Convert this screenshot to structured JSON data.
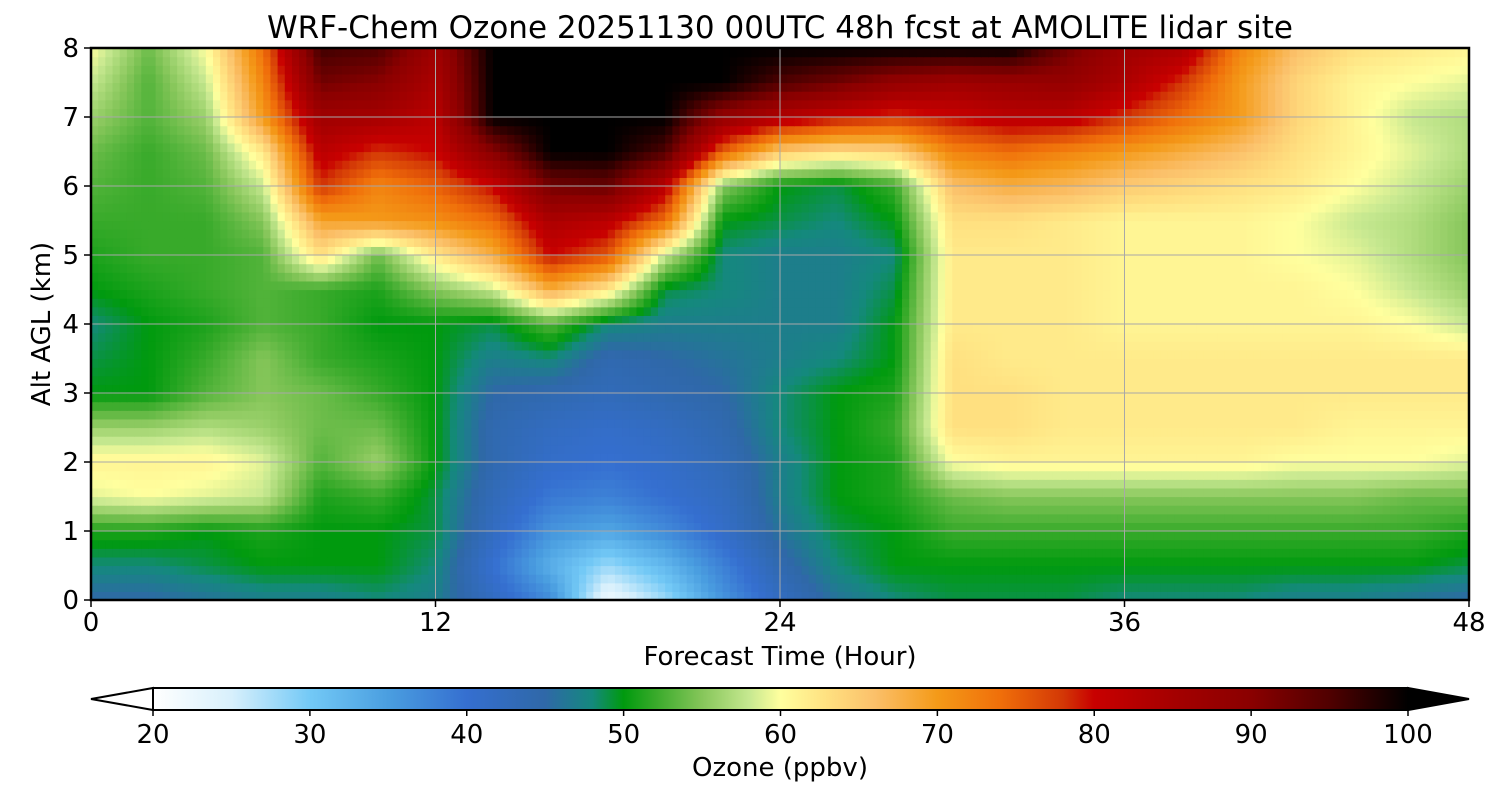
{
  "chart_data": {
    "type": "heatmap",
    "title": "WRF-Chem Ozone  20251130 00UTC 48h fcst at AMOLITE lidar site",
    "xlabel": "Forecast Time (Hour)",
    "ylabel": "Alt AGL (km)",
    "xlim": [
      0,
      48
    ],
    "ylim": [
      0,
      8
    ],
    "x_ticks": [
      "0",
      "12",
      "24",
      "36",
      "48"
    ],
    "y_ticks": [
      "0",
      "1",
      "2",
      "3",
      "4",
      "5",
      "6",
      "7",
      "8"
    ],
    "grid": true,
    "x_hours": [
      0,
      2,
      4,
      6,
      8,
      10,
      12,
      14,
      16,
      18,
      20,
      22,
      24,
      26,
      28,
      30,
      32,
      34,
      36,
      38,
      40,
      42,
      44,
      46,
      48
    ],
    "y_km": [
      0,
      0.5,
      1,
      1.5,
      2,
      2.5,
      3,
      3.5,
      4,
      4.5,
      5,
      5.5,
      6,
      6.5,
      7,
      7.5,
      8
    ],
    "ozone_ppbv": [
      [
        45,
        45,
        46,
        47,
        47,
        48,
        47,
        42,
        37,
        22,
        28,
        36,
        42,
        46,
        48,
        49,
        49,
        49,
        48,
        48,
        48,
        47,
        47,
        46,
        45
      ],
      [
        48,
        48,
        49,
        50,
        50,
        50,
        48,
        40,
        33,
        28,
        32,
        38,
        44,
        48,
        50,
        50,
        50,
        50,
        50,
        50,
        50,
        50,
        50,
        50,
        49
      ],
      [
        51,
        51,
        50,
        51,
        50,
        50,
        49,
        42,
        36,
        34,
        37,
        41,
        46,
        49,
        50,
        52,
        52,
        52,
        52,
        52,
        52,
        52,
        52,
        52,
        51
      ],
      [
        59,
        60,
        59,
        58,
        51,
        52,
        49,
        43,
        39,
        38,
        40,
        42,
        47,
        50,
        51,
        54,
        55,
        55,
        55,
        55,
        55,
        55,
        55,
        54,
        54
      ],
      [
        61,
        61,
        61,
        59,
        53,
        56,
        50,
        44,
        41,
        40,
        41,
        43,
        47,
        50,
        51,
        60,
        61,
        61,
        61,
        61,
        61,
        60,
        60,
        60,
        59
      ],
      [
        56,
        56,
        57,
        56,
        54,
        54,
        50,
        44,
        42,
        41,
        42,
        44,
        48,
        50,
        52,
        63,
        63,
        62,
        62,
        62,
        62,
        62,
        61,
        61,
        61
      ],
      [
        50,
        50,
        53,
        55,
        54,
        52,
        50,
        45,
        44,
        43,
        44,
        45,
        48,
        50,
        51,
        63,
        63,
        62,
        62,
        62,
        62,
        62,
        62,
        62,
        62
      ],
      [
        49,
        50,
        52,
        55,
        52,
        51,
        50,
        47,
        48,
        44,
        45,
        46,
        47,
        48,
        50,
        63,
        62,
        62,
        62,
        62,
        62,
        62,
        62,
        62,
        62
      ],
      [
        48,
        50,
        51,
        53,
        52,
        50,
        50,
        49,
        53,
        48,
        47,
        47,
        47,
        47,
        50,
        62,
        62,
        62,
        61,
        61,
        61,
        61,
        61,
        60,
        58
      ],
      [
        50,
        51,
        52,
        53,
        52,
        51,
        55,
        58,
        68,
        62,
        49,
        48,
        47,
        47,
        49,
        62,
        62,
        62,
        61,
        61,
        61,
        61,
        60,
        58,
        56
      ],
      [
        51,
        52,
        52,
        53,
        63,
        54,
        62,
        68,
        80,
        76,
        58,
        48,
        47,
        47,
        48,
        62,
        62,
        62,
        61,
        61,
        61,
        60,
        59,
        57,
        55
      ],
      [
        52,
        52,
        52,
        55,
        69,
        70,
        71,
        74,
        84,
        82,
        74,
        50,
        49,
        48,
        50,
        63,
        63,
        62,
        61,
        61,
        61,
        60,
        58,
        57,
        55
      ],
      [
        53,
        52,
        53,
        58,
        78,
        72,
        75,
        80,
        92,
        93,
        82,
        55,
        50,
        49,
        52,
        66,
        68,
        67,
        65,
        64,
        63,
        62,
        60,
        58,
        56
      ],
      [
        54,
        52,
        54,
        62,
        82,
        78,
        80,
        90,
        100,
        100,
        95,
        75,
        65,
        63,
        64,
        72,
        74,
        72,
        70,
        68,
        66,
        63,
        61,
        59,
        57
      ],
      [
        56,
        53,
        56,
        70,
        86,
        85,
        82,
        100,
        100,
        100,
        100,
        88,
        83,
        80,
        78,
        80,
        82,
        82,
        78,
        74,
        70,
        64,
        61,
        58,
        57
      ],
      [
        58,
        53,
        58,
        72,
        92,
        90,
        84,
        100,
        100,
        100,
        100,
        100,
        95,
        92,
        88,
        86,
        87,
        88,
        84,
        78,
        70,
        64,
        61,
        60,
        59
      ],
      [
        60,
        54,
        60,
        74,
        96,
        95,
        86,
        100,
        100,
        100,
        100,
        100,
        100,
        100,
        100,
        100,
        100,
        92,
        86,
        84,
        72,
        66,
        63,
        62,
        61
      ]
    ],
    "colorbar": {
      "label": "Ozone  (ppbv)",
      "min": 20,
      "max": 100,
      "ticks": [
        "20",
        "30",
        "40",
        "50",
        "60",
        "70",
        "80",
        "90",
        "100"
      ],
      "extend": "both",
      "stops": [
        [
          20,
          "#ffffff"
        ],
        [
          25,
          "#d8f0fc"
        ],
        [
          30,
          "#73c9f6"
        ],
        [
          35,
          "#4a9ee0"
        ],
        [
          40,
          "#356fd0"
        ],
        [
          45,
          "#2f68a8"
        ],
        [
          48,
          "#14897d"
        ],
        [
          50,
          "#009a0e"
        ],
        [
          52,
          "#38aa2a"
        ],
        [
          55,
          "#86c65a"
        ],
        [
          58,
          "#c6e890"
        ],
        [
          60,
          "#ffff9e"
        ],
        [
          63,
          "#ffe080"
        ],
        [
          66,
          "#fbc06a"
        ],
        [
          70,
          "#f49a18"
        ],
        [
          74,
          "#f06f0a"
        ],
        [
          78,
          "#d33806"
        ],
        [
          80,
          "#c80000"
        ],
        [
          85,
          "#a50000"
        ],
        [
          90,
          "#8a0000"
        ],
        [
          95,
          "#500000"
        ],
        [
          100,
          "#000000"
        ]
      ]
    }
  }
}
